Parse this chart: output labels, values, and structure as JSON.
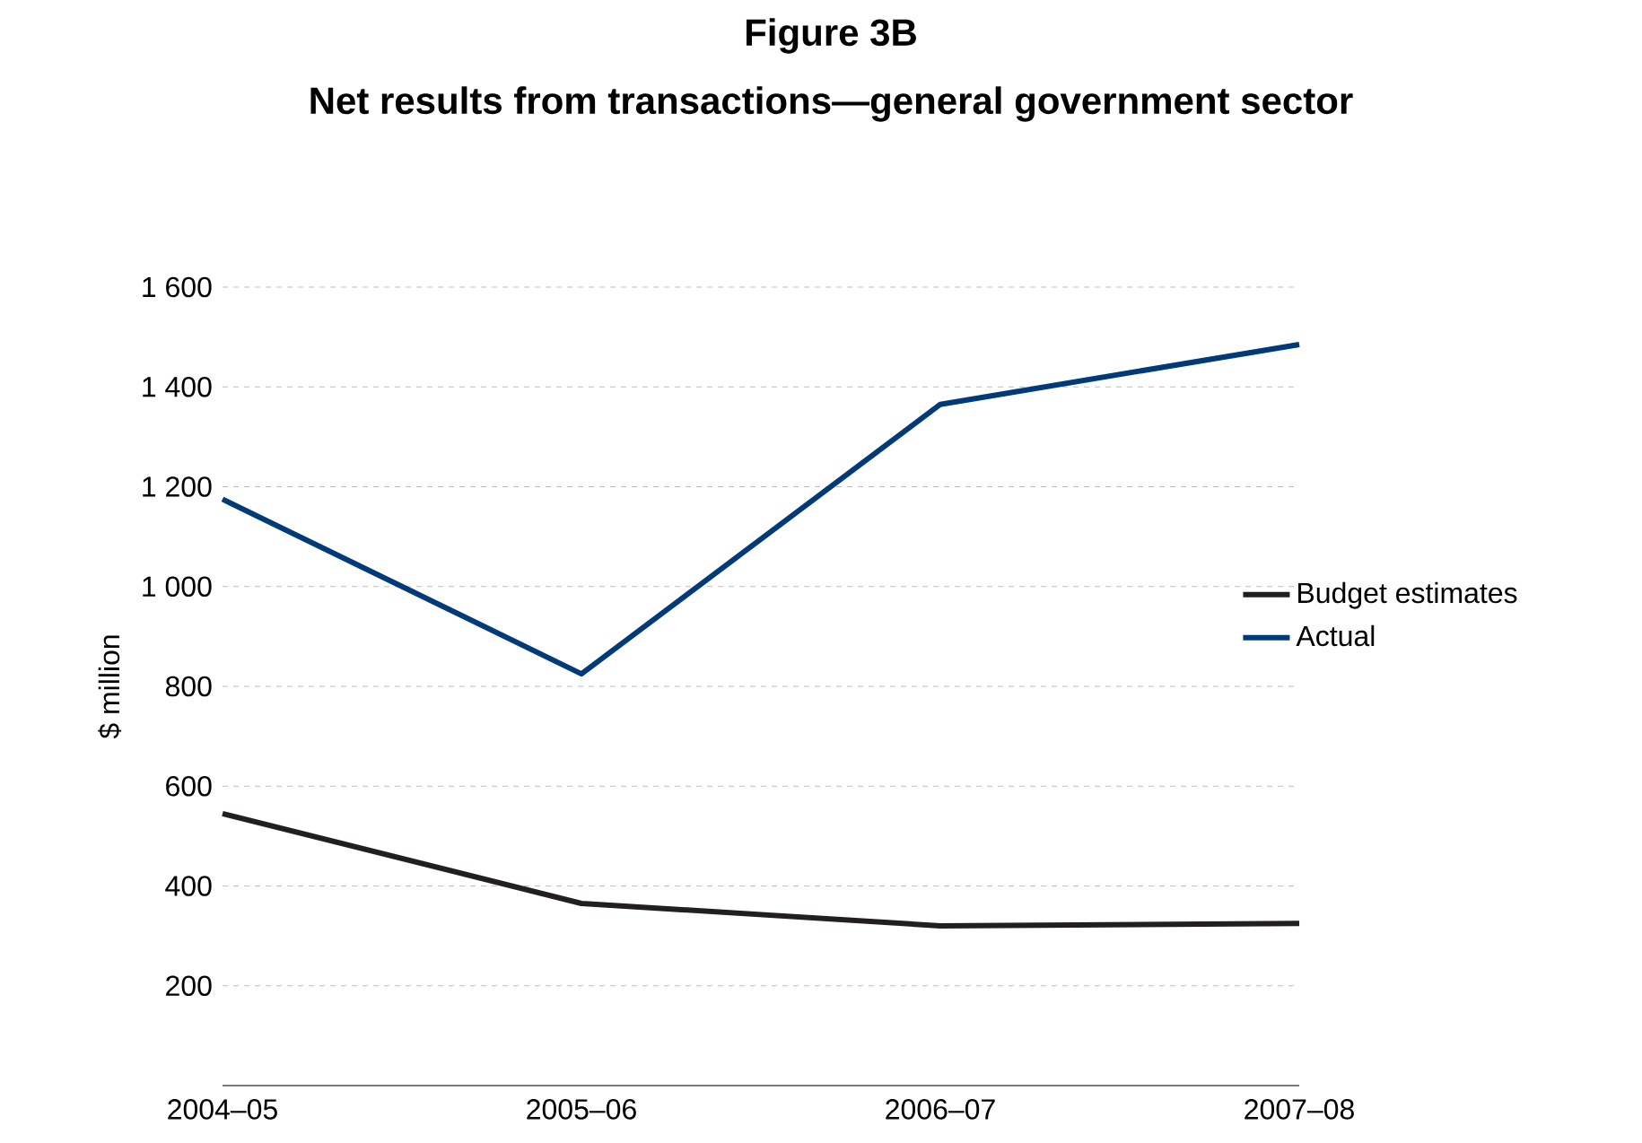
{
  "chart_data": {
    "type": "line",
    "title": "Figure 3B",
    "subtitle": "Net results from transactions—general government sector",
    "ylabel": "$ million",
    "categories": [
      "2004–05",
      "2005–06",
      "2006–07",
      "2007–08"
    ],
    "series": [
      {
        "name": "Budget estimates",
        "color": "#231f20",
        "values": [
          545,
          365,
          320,
          325
        ]
      },
      {
        "name": "Actual",
        "color": "#003a78",
        "values": [
          1175,
          825,
          1365,
          1485
        ]
      }
    ],
    "ylim": [
      0,
      1600
    ],
    "yticks": [
      {
        "value": 200,
        "label": "200"
      },
      {
        "value": 400,
        "label": "400"
      },
      {
        "value": 600,
        "label": "600"
      },
      {
        "value": 800,
        "label": "800"
      },
      {
        "value": 1000,
        "label": "1 000"
      },
      {
        "value": 1200,
        "label": "1 200"
      },
      {
        "value": 1400,
        "label": "1 400"
      },
      {
        "value": 1600,
        "label": "1 600"
      }
    ],
    "grid": "y",
    "legend": "right",
    "marker": "none",
    "line_style": "solid"
  }
}
